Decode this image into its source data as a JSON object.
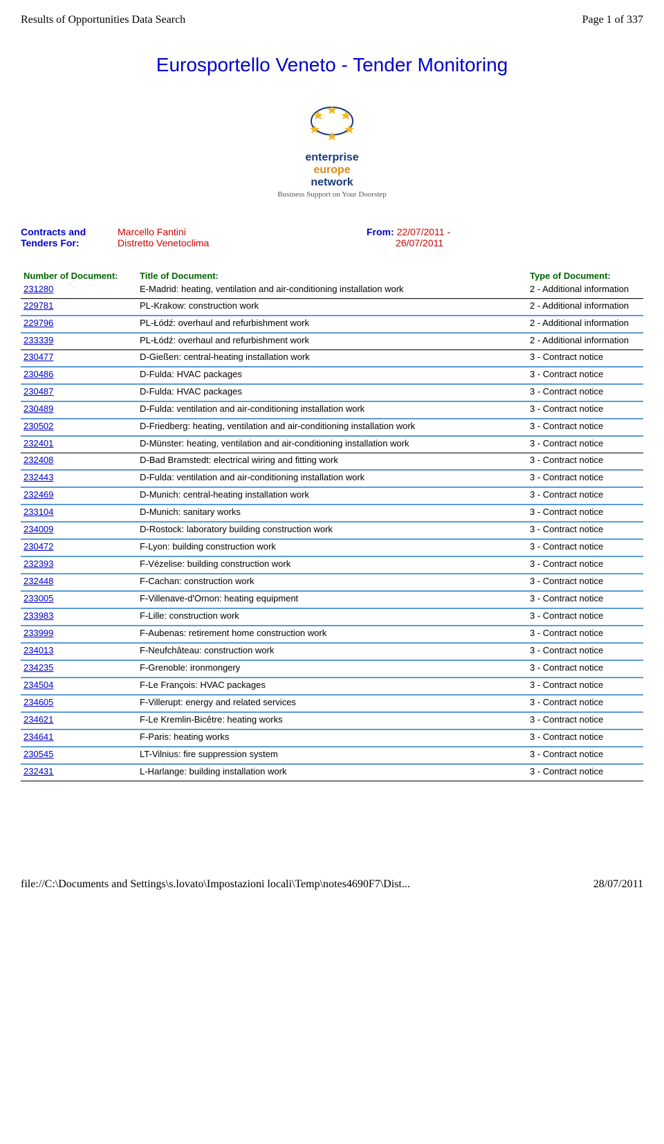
{
  "header": {
    "left": "Results of Opportunities Data Search",
    "right": "Page 1 of 337"
  },
  "main_title": "Eurosportello Veneto - Tender Monitoring",
  "logo": {
    "line1_a": "enterprise",
    "line1_b": "europe",
    "line2": "network",
    "tagline": "Business Support on Your Doorstep"
  },
  "contracts": {
    "label_line1": "Contracts and",
    "label_line2": "Tenders For:",
    "value_line1": "Marcello Fantini",
    "value_line2": "Distretto Venetoclima",
    "from_label": "From:",
    "from_value1": "22/07/2011 -",
    "from_value2": "26/07/2011"
  },
  "table": {
    "headers": {
      "num": "Number of Document:",
      "title": "Title of Document:",
      "type": "Type of Document:"
    },
    "rows": [
      {
        "num": "231280",
        "title": "E-Madrid: heating, ventilation and air-conditioning installation work",
        "type": "2 - Additional information",
        "sep": "black"
      },
      {
        "num": "229781",
        "title": "PL-Krakow: construction work",
        "type": "2 - Additional information",
        "sep": "blue"
      },
      {
        "num": "229796",
        "title": "PL-Łódź: overhaul and refurbishment work",
        "type": "2 - Additional information",
        "sep": "blue"
      },
      {
        "num": "233339",
        "title": "PL-Łódź: overhaul and refurbishment work",
        "type": "2 - Additional information",
        "sep": "black"
      },
      {
        "num": "230477",
        "title": "D-Gießen: central-heating installation work",
        "type": "3 - Contract notice",
        "sep": "blue"
      },
      {
        "num": "230486",
        "title": "D-Fulda: HVAC packages",
        "type": "3 - Contract notice",
        "sep": "blue"
      },
      {
        "num": "230487",
        "title": "D-Fulda: HVAC packages",
        "type": "3 - Contract notice",
        "sep": "blue"
      },
      {
        "num": "230489",
        "title": "D-Fulda: ventilation and air-conditioning installation work",
        "type": "3 - Contract notice",
        "sep": "blue"
      },
      {
        "num": "230502",
        "title": "D-Friedberg: heating, ventilation and air-conditioning installation work",
        "type": "3 - Contract notice",
        "sep": "blue"
      },
      {
        "num": "232401",
        "title": "D-Münster: heating, ventilation and air-conditioning installation work",
        "type": "3 - Contract notice",
        "sep": "black"
      },
      {
        "num": "232408",
        "title": "D-Bad Bramstedt: electrical wiring and fitting work",
        "type": "3 - Contract notice",
        "sep": "blue"
      },
      {
        "num": "232443",
        "title": "D-Fulda: ventilation and air-conditioning installation work",
        "type": "3 - Contract notice",
        "sep": "blue"
      },
      {
        "num": "232469",
        "title": "D-Munich: central-heating installation work",
        "type": "3 - Contract notice",
        "sep": "blue"
      },
      {
        "num": "233104",
        "title": "D-Munich: sanitary works",
        "type": "3 - Contract notice",
        "sep": "blue"
      },
      {
        "num": "234009",
        "title": "D-Rostock: laboratory building construction work",
        "type": "3 - Contract notice",
        "sep": "blue"
      },
      {
        "num": "230472",
        "title": "F-Lyon: building construction work",
        "type": "3 - Contract notice",
        "sep": "blue"
      },
      {
        "num": "232393",
        "title": "F-Vézelise: building construction work",
        "type": "3 - Contract notice",
        "sep": "blue"
      },
      {
        "num": "232448",
        "title": "F-Cachan: construction work",
        "type": "3 - Contract notice",
        "sep": "blue"
      },
      {
        "num": "233005",
        "title": "F-Villenave-d'Ornon: heating equipment",
        "type": "3 - Contract notice",
        "sep": "blue"
      },
      {
        "num": "233983",
        "title": "F-Lille: construction work",
        "type": "3 - Contract notice",
        "sep": "blue"
      },
      {
        "num": "233999",
        "title": "F-Aubenas: retirement home construction work",
        "type": "3 - Contract notice",
        "sep": "blue"
      },
      {
        "num": "234013",
        "title": "F-Neufchâteau: construction work",
        "type": "3 - Contract notice",
        "sep": "blue"
      },
      {
        "num": "234235",
        "title": "F-Grenoble: ironmongery",
        "type": "3 - Contract notice",
        "sep": "blue"
      },
      {
        "num": "234504",
        "title": "F-Le François: HVAC packages",
        "type": "3 - Contract notice",
        "sep": "blue"
      },
      {
        "num": "234605",
        "title": "F-Villerupt: energy and related services",
        "type": "3 - Contract notice",
        "sep": "blue"
      },
      {
        "num": "234621",
        "title": "F-Le Kremlin-Bicêtre: heating works",
        "type": "3 - Contract notice",
        "sep": "blue"
      },
      {
        "num": "234641",
        "title": "F-Paris: heating works",
        "type": "3 - Contract notice",
        "sep": "blue"
      },
      {
        "num": "230545",
        "title": "LT-Vilnius: fire suppression system",
        "type": "3 - Contract notice",
        "sep": "blue"
      },
      {
        "num": "232431",
        "title": "L-Harlange: building installation work",
        "type": "3 - Contract notice",
        "sep": "black"
      }
    ]
  },
  "footer": {
    "left": "file://C:\\Documents and Settings\\s.lovato\\Impostazioni locali\\Temp\\notes4690F7\\Dist...",
    "right": "28/07/2011"
  },
  "colors": {
    "link": "#0000cc",
    "red": "#cc0000",
    "green_header": "#006600",
    "blue_border": "#5b9bd5"
  }
}
